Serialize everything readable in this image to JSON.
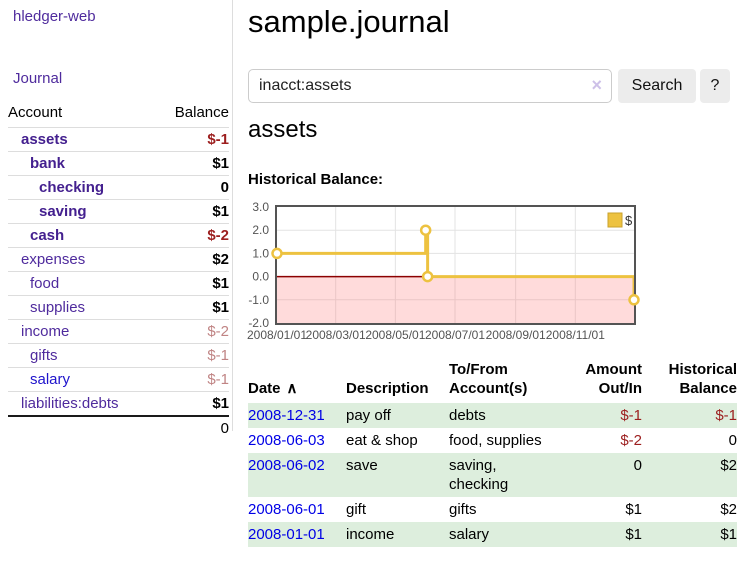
{
  "colors": {
    "link_purple": "#4f2b9d",
    "link_purple_bold": "#44208f",
    "link_blue": "#1f14cc",
    "date_link_blue": "#0000e6",
    "negative_dark": "#9c1e1e",
    "negative_light": "#c08484",
    "row_stripe_green": "#ddeedd",
    "series_gold": "#edc240"
  },
  "sidebar": {
    "app_title": "hledger-web",
    "journal_link": "Journal",
    "accounts_header": {
      "account": "Account",
      "balance": "Balance"
    },
    "accounts": [
      {
        "name": "assets",
        "balance": "$-1"
      },
      {
        "name": "bank",
        "balance": "$1"
      },
      {
        "name": "checking",
        "balance": "0"
      },
      {
        "name": "saving",
        "balance": "$1"
      },
      {
        "name": "cash",
        "balance": "$-2"
      },
      {
        "name": "expenses",
        "balance": "$2"
      },
      {
        "name": "food",
        "balance": "$1"
      },
      {
        "name": "supplies",
        "balance": "$1"
      },
      {
        "name": "income",
        "balance": "$-2"
      },
      {
        "name": "gifts",
        "balance": "$-1"
      },
      {
        "name": "salary",
        "balance": "$-1"
      },
      {
        "name": "liabilities:debts",
        "balance": "$1"
      }
    ],
    "total_balance": "0"
  },
  "main": {
    "title": "sample.journal",
    "search": {
      "value": "inacct:assets",
      "clear_icon": "×",
      "button_label": "Search",
      "help_label": "?"
    },
    "account_heading": "assets",
    "chart_title": "Historical Balance:",
    "register": {
      "headers": {
        "date": "Date",
        "sort_indicator": "∧",
        "description": "Description",
        "accounts": "To/From Account(s)",
        "amount": "Amount Out/In",
        "balance": "Historical Balance"
      },
      "rows": [
        {
          "date": "2008-12-31",
          "description": "pay off",
          "accounts": "debts",
          "amount": "$-1",
          "balance": "$-1"
        },
        {
          "date": "2008-06-03",
          "description": "eat & shop",
          "accounts": "food, supplies",
          "amount": "$-2",
          "balance": "0"
        },
        {
          "date": "2008-06-02",
          "description": "save",
          "accounts": "saving, checking",
          "amount": "0",
          "balance": "$2"
        },
        {
          "date": "2008-06-01",
          "description": "gift",
          "accounts": "gifts",
          "amount": "$1",
          "balance": "$2"
        },
        {
          "date": "2008-01-01",
          "description": "income",
          "accounts": "salary",
          "amount": "$1",
          "balance": "$1"
        }
      ]
    }
  },
  "chart_data": {
    "type": "line",
    "step": true,
    "title": "Historical Balance:",
    "series": [
      {
        "name": "$",
        "color": "#edc240",
        "points": [
          [
            "2008-01-01",
            1
          ],
          [
            "2008-06-01",
            2
          ],
          [
            "2008-06-03",
            0
          ],
          [
            "2008-12-31",
            -1
          ]
        ]
      }
    ],
    "x_range": [
      "2008-01-01",
      "2008-12-31"
    ],
    "ylim": [
      -2,
      3
    ],
    "y_ticks": [
      3,
      2,
      1,
      0,
      -1,
      -2
    ],
    "x_ticks": [
      {
        "date": "2008-01-01",
        "label": "2008/01/01"
      },
      {
        "date": "2008-03-01",
        "label": "2008/03/01"
      },
      {
        "date": "2008-05-01",
        "label": "2008/05/01"
      },
      {
        "date": "2008-07-01",
        "label": "2008/07/01"
      },
      {
        "date": "2008-09-01",
        "label": "2008/09/01"
      },
      {
        "date": "2008-11-01",
        "label": "2008/11/01"
      }
    ],
    "legend": {
      "position": "top-right",
      "label": "$"
    },
    "grid": true,
    "grid_color": "#e3e3e3",
    "tick_label_color": "#545454",
    "border_color": "#545454",
    "zero_line_color": "#8b0000",
    "negative_region_color": "rgba(255,110,110,0.25)",
    "marker": {
      "fill": "#ffffff",
      "radius": 4.5
    }
  }
}
